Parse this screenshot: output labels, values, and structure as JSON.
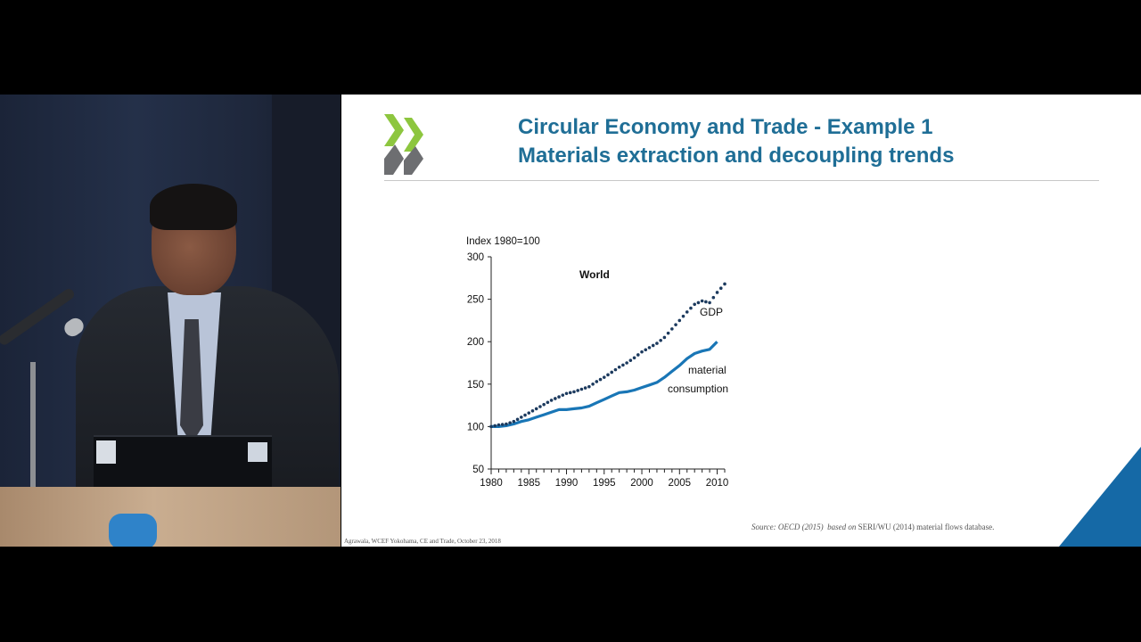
{
  "slide": {
    "title_line1": "Circular Economy and Trade - Example 1",
    "title_line2": "Materials extraction and decoupling trends",
    "source_italic_1": "Source: OECD (2015)",
    "source_italic_2": "based on",
    "source_rest": " SERI/WU (2014) material flows database.",
    "footer": "Agrawala, WCEF Yokohama, CE and Trade, October 23, 2018",
    "logo": "oecd-chevrons-logo",
    "colors": {
      "title": "#1f6e96",
      "logo_green": "#8dc63f",
      "logo_gray": "#6d6e71",
      "corner": "#1569a6",
      "gdp": "#1c3a5e",
      "material": "#1976b6"
    }
  },
  "chart_data": {
    "type": "line",
    "title": "World",
    "ylabel": "Index 1980=100",
    "xlim": [
      1980,
      2011
    ],
    "ylim": [
      50,
      300
    ],
    "xticks": [
      1980,
      1985,
      1990,
      1995,
      2000,
      2005,
      2010
    ],
    "yticks": [
      300,
      250,
      200,
      150,
      100,
      50
    ],
    "x": [
      1980,
      1981,
      1982,
      1983,
      1984,
      1985,
      1986,
      1987,
      1988,
      1989,
      1990,
      1991,
      1992,
      1993,
      1994,
      1995,
      1996,
      1997,
      1998,
      1999,
      2000,
      2001,
      2002,
      2003,
      2004,
      2005,
      2006,
      2007,
      2008,
      2009,
      2010,
      2011
    ],
    "series": [
      {
        "name": "GDP",
        "style": "dotted",
        "values": [
          100,
          102,
          103,
          106,
          111,
          116,
          121,
          126,
          131,
          135,
          139,
          141,
          144,
          147,
          153,
          158,
          164,
          170,
          175,
          181,
          188,
          193,
          198,
          205,
          215,
          225,
          235,
          244,
          248,
          246,
          258,
          268
        ]
      },
      {
        "name": "material consumption",
        "style": "solid",
        "values": [
          100,
          100,
          101,
          103,
          106,
          108,
          111,
          114,
          117,
          120,
          120,
          121,
          122,
          124,
          128,
          132,
          136,
          140,
          141,
          143,
          146,
          149,
          152,
          158,
          165,
          172,
          180,
          186,
          189,
          191,
          200,
          null
        ]
      }
    ],
    "annotations": [
      {
        "text": "GDP"
      },
      {
        "text_line1": "material",
        "text_line2": "consumption"
      }
    ]
  }
}
